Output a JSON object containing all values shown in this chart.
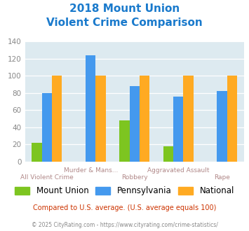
{
  "title_line1": "2018 Mount Union",
  "title_line2": "Violent Crime Comparison",
  "categories_top": [
    "Murder & Mans...",
    "Aggravated Assault"
  ],
  "categories_bottom": [
    "All Violent Crime",
    "Robbery",
    "Rape"
  ],
  "categories_all": [
    "All Violent Crime",
    "Murder & Mans...",
    "Robbery",
    "Aggravated Assault",
    "Rape"
  ],
  "series": {
    "Mount Union": [
      22,
      0,
      48,
      18,
      0
    ],
    "Pennsylvania": [
      80,
      124,
      88,
      76,
      82
    ],
    "National": [
      100,
      100,
      100,
      100,
      100
    ]
  },
  "colors": {
    "Mount Union": "#7dc520",
    "Pennsylvania": "#4499ee",
    "National": "#ffaa22"
  },
  "ylim": [
    0,
    140
  ],
  "yticks": [
    0,
    20,
    40,
    60,
    80,
    100,
    120,
    140
  ],
  "bg_color": "#ddeaf0",
  "title_color": "#1a7acc",
  "xtick_color": "#b08888",
  "ytick_color": "#888888",
  "legend_fontsize": 8.5,
  "footnote1": "Compared to U.S. average. (U.S. average equals 100)",
  "footnote2": "© 2025 CityRating.com - https://www.cityrating.com/crime-statistics/",
  "footnote1_color": "#cc3300",
  "footnote2_color": "#888888",
  "footnote2_link_color": "#3388cc"
}
